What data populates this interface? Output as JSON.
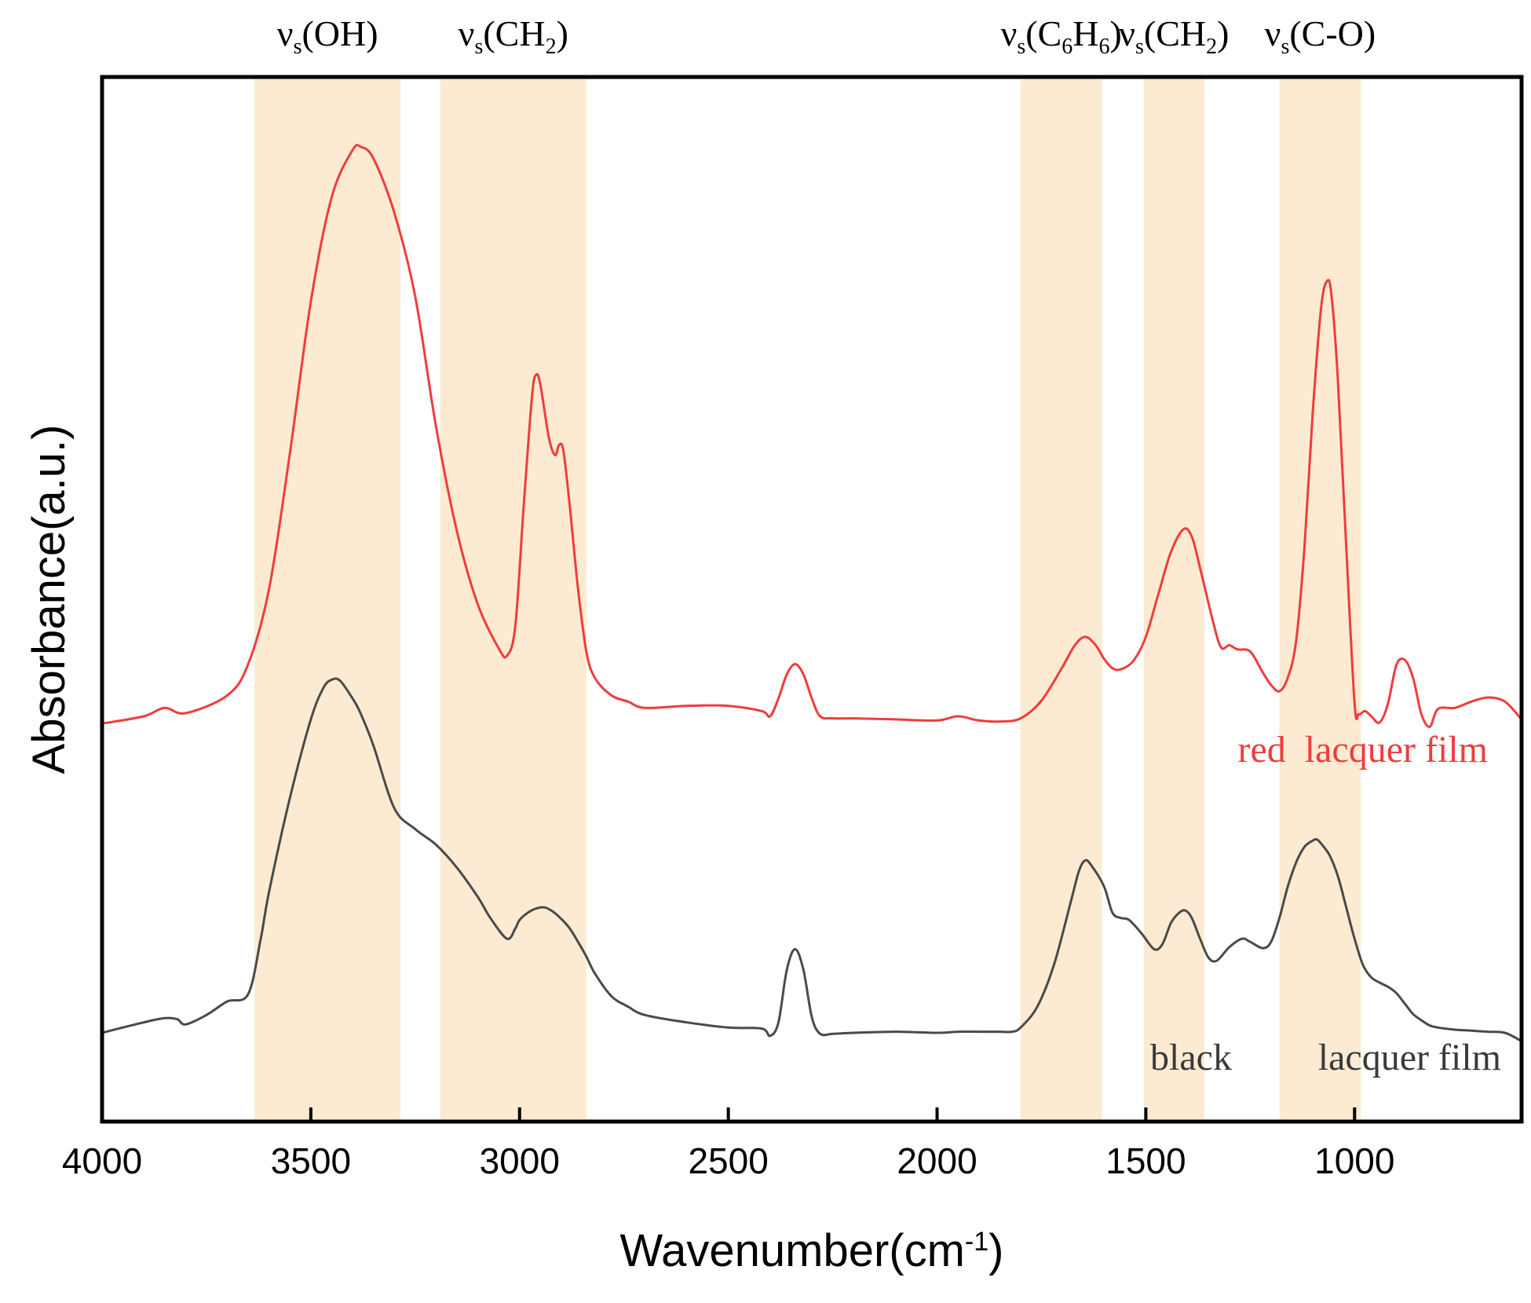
{
  "chart_data": {
    "type": "line",
    "title": "",
    "xlabel": "Wavenumber(cm",
    "xlabel_superscript": "-1",
    "xlabel_close": ")",
    "ylabel": "Absorbance(a.u.)",
    "xlim": [
      4000,
      600
    ],
    "ylim": [
      0,
      100
    ],
    "x_ticks": [
      4000,
      3500,
      3000,
      2500,
      2000,
      1500,
      1000
    ],
    "x_tick_labels": [
      "4000",
      "3500",
      "3000",
      "2500",
      "2000",
      "1500",
      "1000"
    ],
    "y_ticks_visible": false,
    "grid": false,
    "band_color": "#fcebd2",
    "bands": [
      {
        "from": 3635,
        "to": 3285,
        "label_base": "ν",
        "label_sub": "s",
        "label_text": "(OH)"
      },
      {
        "from": 3190,
        "to": 2840,
        "label_base": "ν",
        "label_sub": "s",
        "label_text": "(CH",
        "label_text_sub": "2",
        "label_text_end": ")"
      },
      {
        "from": 1800,
        "to": 1605,
        "label_base": "ν",
        "label_sub": "s",
        "label_text": "(C",
        "label_text_sub": "6",
        "label_text_mid": "H",
        "label_text_sub2": "6",
        "label_text_end": ")"
      },
      {
        "from": 1505,
        "to": 1360,
        "label_base": "ν",
        "label_sub": "s",
        "label_text": "(CH",
        "label_text_sub": "2",
        "label_text_end": ")"
      },
      {
        "from": 1180,
        "to": 985,
        "label_base": "ν",
        "label_sub": "s",
        "label_text": "(C-O)"
      }
    ],
    "series": [
      {
        "name": "red  lacquer film",
        "color": "#f03c3c",
        "x": [
          4000,
          3900,
          3850,
          3800,
          3700,
          3650,
          3600,
          3550,
          3500,
          3450,
          3400,
          3380,
          3350,
          3300,
          3250,
          3200,
          3150,
          3100,
          3050,
          3030,
          3010,
          2990,
          2970,
          2960,
          2950,
          2930,
          2915,
          2905,
          2895,
          2880,
          2860,
          2840,
          2820,
          2780,
          2740,
          2700,
          2600,
          2500,
          2420,
          2400,
          2380,
          2360,
          2340,
          2320,
          2300,
          2280,
          2250,
          2200,
          2100,
          2000,
          1950,
          1900,
          1850,
          1800,
          1750,
          1700,
          1670,
          1645,
          1620,
          1600,
          1580,
          1560,
          1530,
          1500,
          1470,
          1440,
          1410,
          1390,
          1370,
          1340,
          1320,
          1300,
          1280,
          1250,
          1220,
          1200,
          1180,
          1160,
          1140,
          1120,
          1100,
          1080,
          1065,
          1055,
          1040,
          1020,
          1000,
          990,
          975,
          960,
          940,
          920,
          900,
          880,
          860,
          840,
          820,
          800,
          760,
          720,
          680,
          640,
          600
        ],
        "y": [
          38.1,
          38.8,
          39.6,
          39.1,
          40.8,
          43.8,
          51.0,
          64.0,
          78.5,
          88.5,
          93.0,
          93.3,
          92.2,
          87.0,
          79.0,
          66.5,
          56.5,
          49.5,
          45.3,
          44.6,
          47.5,
          59.0,
          69.5,
          71.5,
          70.5,
          65.5,
          63.8,
          64.8,
          64.2,
          59.0,
          51.0,
          45.0,
          42.5,
          40.8,
          40.2,
          39.6,
          39.8,
          39.8,
          39.3,
          38.8,
          40.5,
          42.8,
          43.8,
          42.8,
          40.5,
          38.8,
          38.6,
          38.6,
          38.5,
          38.4,
          38.8,
          38.4,
          38.3,
          38.6,
          40.3,
          43.5,
          45.6,
          46.4,
          45.6,
          44.3,
          43.4,
          43.3,
          44.1,
          46.4,
          50.5,
          54.5,
          56.7,
          56.0,
          53.0,
          48.0,
          45.4,
          45.6,
          45.2,
          45.0,
          43.0,
          41.8,
          41.2,
          42.5,
          46.0,
          55.0,
          68.0,
          78.0,
          80.5,
          79.0,
          71.0,
          55.0,
          40.0,
          39.0,
          39.3,
          38.8,
          38.2,
          40.0,
          43.7,
          44.2,
          42.5,
          39.0,
          37.8,
          39.5,
          39.6,
          40.2,
          40.6,
          40.2,
          38.5
        ]
      },
      {
        "name": "black  lacquer film",
        "color": "#4a4a4a",
        "x": [
          4000,
          3900,
          3850,
          3820,
          3800,
          3750,
          3700,
          3650,
          3620,
          3600,
          3550,
          3500,
          3470,
          3450,
          3430,
          3400,
          3380,
          3350,
          3300,
          3250,
          3200,
          3150,
          3100,
          3070,
          3030,
          3010,
          3000,
          2980,
          2960,
          2940,
          2920,
          2900,
          2880,
          2860,
          2840,
          2820,
          2780,
          2740,
          2700,
          2600,
          2500,
          2420,
          2400,
          2380,
          2360,
          2340,
          2320,
          2300,
          2280,
          2250,
          2200,
          2100,
          2000,
          1950,
          1900,
          1850,
          1820,
          1800,
          1760,
          1720,
          1680,
          1660,
          1645,
          1630,
          1600,
          1580,
          1560,
          1540,
          1510,
          1480,
          1460,
          1440,
          1420,
          1405,
          1390,
          1370,
          1350,
          1330,
          1300,
          1270,
          1250,
          1220,
          1200,
          1180,
          1160,
          1140,
          1120,
          1100,
          1090,
          1080,
          1060,
          1040,
          1020,
          1000,
          980,
          960,
          940,
          920,
          900,
          880,
          860,
          840,
          820,
          800,
          760,
          720,
          680,
          640,
          600
        ],
        "y": [
          8.5,
          9.5,
          9.9,
          9.8,
          9.3,
          10.2,
          11.5,
          12.2,
          17.5,
          22.0,
          31.0,
          38.5,
          41.5,
          42.3,
          42.2,
          40.5,
          39.0,
          36.0,
          30.0,
          28.0,
          26.5,
          24.3,
          21.5,
          19.5,
          17.5,
          18.5,
          19.3,
          20.0,
          20.4,
          20.5,
          20.1,
          19.4,
          18.5,
          17.2,
          15.8,
          14.2,
          12.0,
          11.0,
          10.2,
          9.5,
          9.0,
          8.9,
          8.2,
          9.5,
          14.5,
          16.5,
          14.5,
          10.0,
          8.4,
          8.4,
          8.5,
          8.6,
          8.5,
          8.6,
          8.6,
          8.6,
          8.6,
          9.0,
          11.0,
          15.0,
          21.0,
          24.0,
          25.0,
          24.5,
          22.5,
          20.0,
          19.5,
          19.3,
          18.0,
          16.5,
          17.0,
          19.0,
          20.0,
          20.2,
          19.5,
          17.5,
          15.7,
          15.4,
          16.7,
          17.5,
          17.2,
          16.6,
          17.2,
          19.5,
          22.5,
          24.8,
          26.3,
          26.9,
          27.0,
          26.6,
          25.5,
          23.5,
          20.5,
          17.5,
          15.0,
          13.8,
          13.3,
          12.9,
          12.3,
          11.3,
          10.3,
          9.7,
          9.2,
          9.0,
          8.8,
          8.7,
          8.6,
          8.5,
          7.7
        ],
        "label_words": [
          "black",
          "lacquer film"
        ]
      }
    ],
    "annotations": {
      "red_label": "red  lacquer film",
      "black_label_first": "black",
      "black_label_second": "lacquer film"
    }
  }
}
